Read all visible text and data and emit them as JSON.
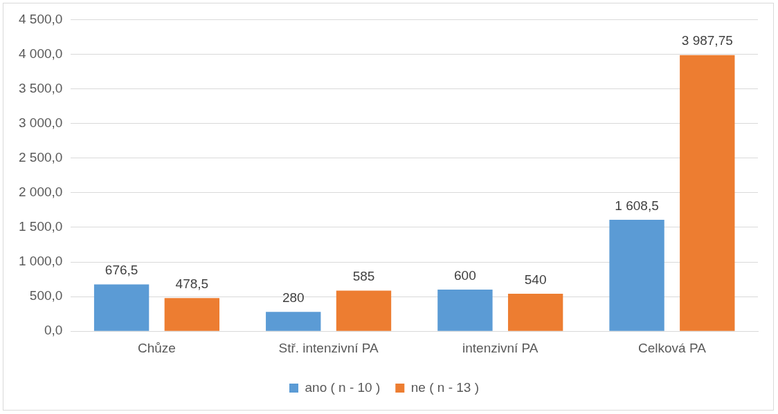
{
  "chart_data": {
    "type": "bar",
    "categories": [
      "Chůze",
      "Stř. intenzivní PA",
      "intenzivní PA",
      "Celková PA"
    ],
    "series": [
      {
        "name": "ano ( n - 10 )",
        "color": "#5b9bd5",
        "values": [
          676.5,
          280,
          600,
          1608.5
        ],
        "value_labels": [
          "676,5",
          "280",
          "600",
          "1 608,5"
        ]
      },
      {
        "name": "ne ( n - 13 )",
        "color": "#ed7d31",
        "values": [
          478.5,
          585,
          540,
          3987.75
        ],
        "value_labels": [
          "478,5",
          "585",
          "540",
          "3 987,75"
        ]
      }
    ],
    "ylim": [
      0,
      4500
    ],
    "yticks": [
      {
        "value": 0,
        "label": "0,0"
      },
      {
        "value": 500,
        "label": "500,0"
      },
      {
        "value": 1000,
        "label": "1 000,0"
      },
      {
        "value": 1500,
        "label": "1 500,0"
      },
      {
        "value": 2000,
        "label": "2 000,0"
      },
      {
        "value": 2500,
        "label": "2 500,0"
      },
      {
        "value": 3000,
        "label": "3 000,0"
      },
      {
        "value": 3500,
        "label": "3 500,0"
      },
      {
        "value": 4000,
        "label": "4 000,0"
      },
      {
        "value": 4500,
        "label": "4 500,0"
      }
    ],
    "grid": "y",
    "legend": "bottom"
  }
}
